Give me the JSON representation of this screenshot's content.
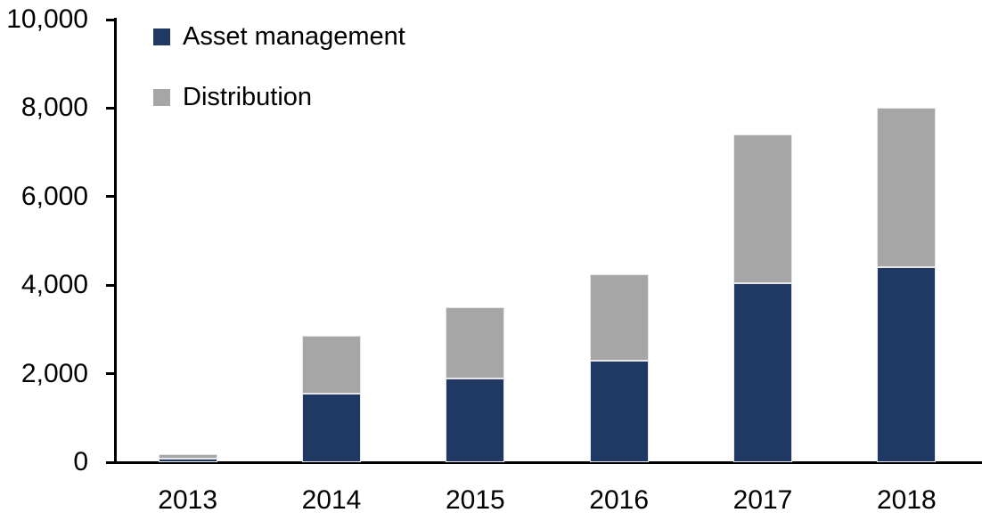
{
  "chart_data": {
    "type": "bar",
    "stacked": true,
    "title": "",
    "xlabel": "",
    "ylabel": "",
    "categories": [
      "2013",
      "2014",
      "2015",
      "2016",
      "2017",
      "2018"
    ],
    "series": [
      {
        "name": "Asset management",
        "color": "#1F3864",
        "values": [
          80,
          1550,
          1900,
          2300,
          4050,
          4400
        ]
      },
      {
        "name": "Distribution",
        "color": "#A6A6A6",
        "values": [
          100,
          1300,
          1600,
          1950,
          3350,
          3600
        ]
      }
    ],
    "totals": [
      180,
      2850,
      3500,
      4250,
      7400,
      8000
    ],
    "ylim": [
      0,
      10000
    ],
    "yticks": [
      {
        "value": 0,
        "label": "0"
      },
      {
        "value": 2000,
        "label": "2,000"
      },
      {
        "value": 4000,
        "label": "4,000"
      },
      {
        "value": 6000,
        "label": "6,000"
      },
      {
        "value": 8000,
        "label": "8,000"
      },
      {
        "value": 10000,
        "label": "10,000"
      }
    ],
    "grid": false,
    "legend_position": "top-left-inside",
    "axis_color": "#000000",
    "background_color": "#FFFFFF",
    "text_color": "#000000"
  }
}
